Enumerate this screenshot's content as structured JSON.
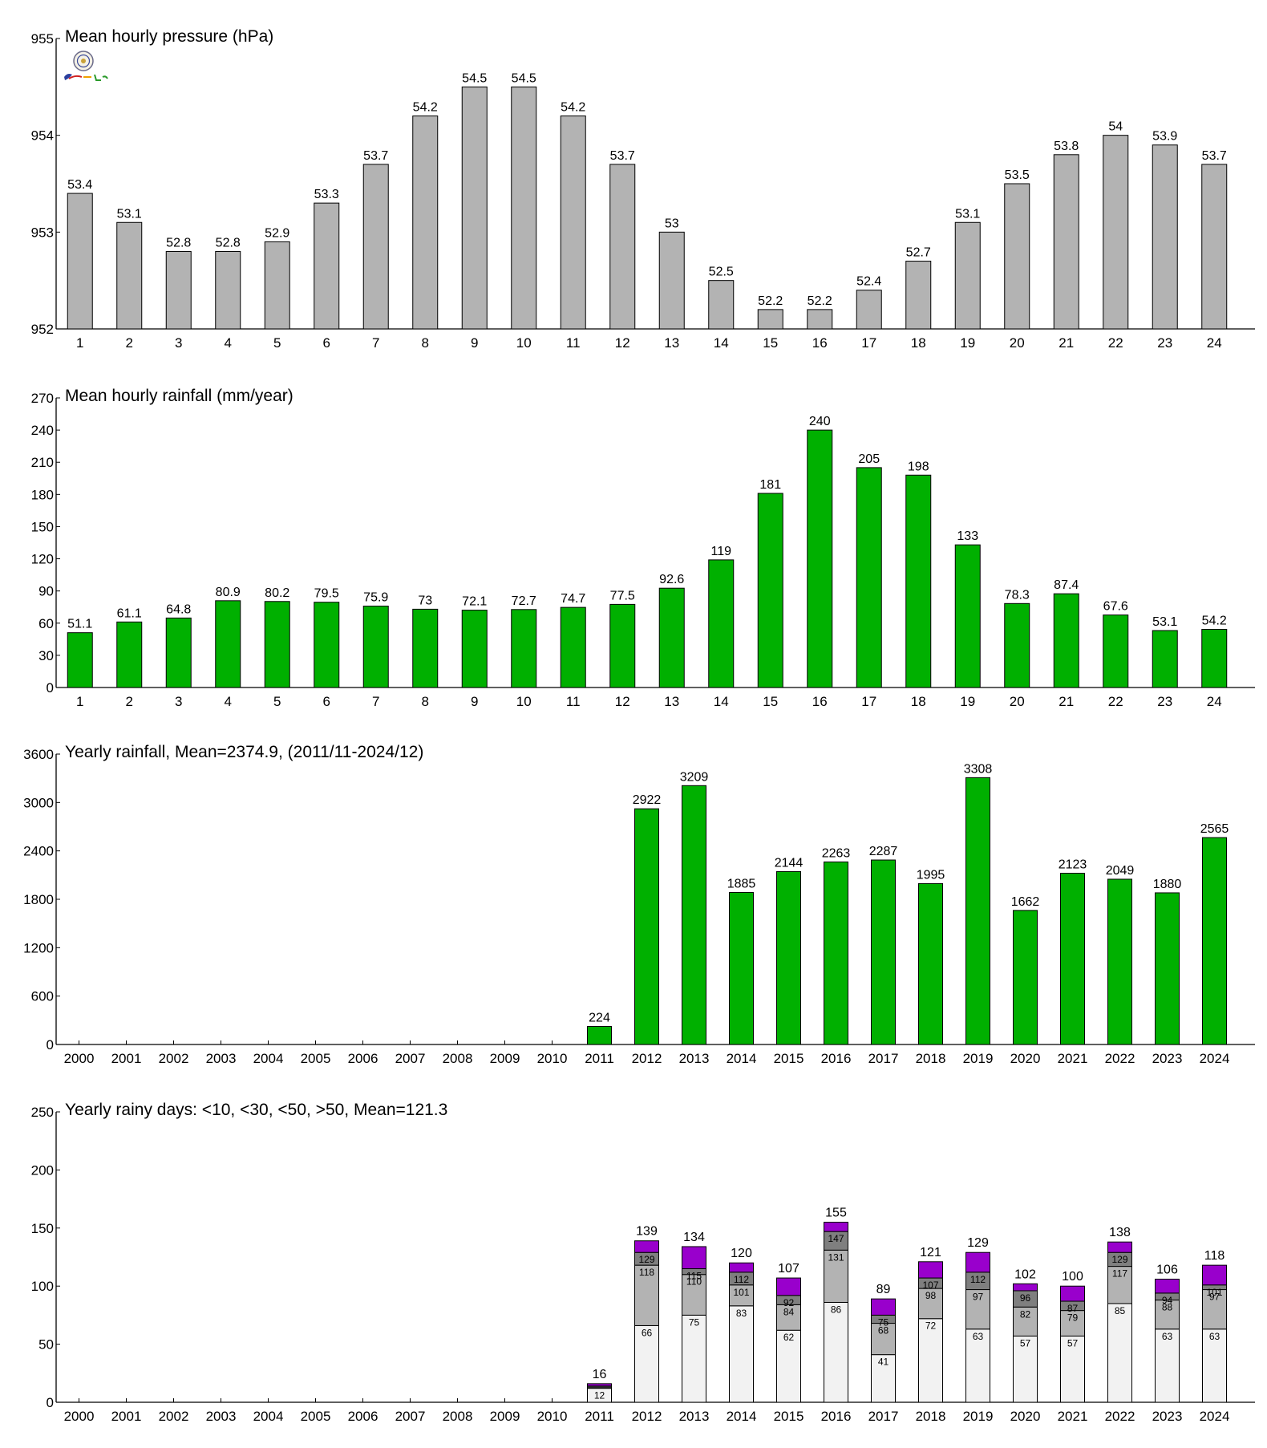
{
  "chart_data": [
    {
      "id": "pressure",
      "type": "bar",
      "title": "Mean hourly pressure (hPa)",
      "xlabel": "",
      "ylabel": "",
      "categories": [
        "1",
        "2",
        "3",
        "4",
        "5",
        "6",
        "7",
        "8",
        "9",
        "10",
        "11",
        "12",
        "13",
        "14",
        "15",
        "16",
        "17",
        "18",
        "19",
        "20",
        "21",
        "22",
        "23",
        "24"
      ],
      "values": [
        953.4,
        953.1,
        952.8,
        952.8,
        952.9,
        953.3,
        953.7,
        954.2,
        954.5,
        954.5,
        954.2,
        953.7,
        953.0,
        952.5,
        952.2,
        952.2,
        952.4,
        952.7,
        953.1,
        953.5,
        953.8,
        954.0,
        953.9,
        953.7
      ],
      "value_labels": [
        "53.4",
        "53.1",
        "52.8",
        "52.8",
        "52.9",
        "53.3",
        "53.7",
        "54.2",
        "54.5",
        "54.5",
        "54.2",
        "53.7",
        "53",
        "52.5",
        "52.2",
        "52.2",
        "52.4",
        "52.7",
        "53.1",
        "53.5",
        "53.8",
        "54",
        "53.9",
        "53.7"
      ],
      "ylim": [
        952,
        955
      ],
      "yticks": [
        952,
        953,
        954,
        955
      ],
      "color": "#b3b3b3",
      "grid": false
    },
    {
      "id": "hourly_rain",
      "type": "bar",
      "title": "Mean hourly rainfall (mm/year)",
      "xlabel": "",
      "ylabel": "",
      "categories": [
        "1",
        "2",
        "3",
        "4",
        "5",
        "6",
        "7",
        "8",
        "9",
        "10",
        "11",
        "12",
        "13",
        "14",
        "15",
        "16",
        "17",
        "18",
        "19",
        "20",
        "21",
        "22",
        "23",
        "24"
      ],
      "values": [
        51.1,
        61.1,
        64.8,
        80.9,
        80.2,
        79.5,
        75.9,
        73,
        72.1,
        72.7,
        74.7,
        77.5,
        92.6,
        119,
        181,
        240,
        205,
        198,
        133,
        78.3,
        87.4,
        67.6,
        53.1,
        54.2
      ],
      "value_labels": [
        "51.1",
        "61.1",
        "64.8",
        "80.9",
        "80.2",
        "79.5",
        "75.9",
        "73",
        "72.1",
        "72.7",
        "74.7",
        "77.5",
        "92.6",
        "119",
        "181",
        "240",
        "205",
        "198",
        "133",
        "78.3",
        "87.4",
        "67.6",
        "53.1",
        "54.2"
      ],
      "ylim": [
        0,
        270
      ],
      "yticks": [
        0,
        30,
        60,
        90,
        120,
        150,
        180,
        210,
        240,
        270
      ],
      "color": "#00b000",
      "grid": false
    },
    {
      "id": "yearly_rain",
      "type": "bar",
      "title": "Yearly rainfall, Mean=2374.9, (2011/11-2024/12)",
      "xlabel": "",
      "ylabel": "",
      "categories": [
        "2000",
        "2001",
        "2002",
        "2003",
        "2004",
        "2005",
        "2006",
        "2007",
        "2008",
        "2009",
        "2010",
        "2011",
        "2012",
        "2013",
        "2014",
        "2015",
        "2016",
        "2017",
        "2018",
        "2019",
        "2020",
        "2021",
        "2022",
        "2023",
        "2024"
      ],
      "values": [
        null,
        null,
        null,
        null,
        null,
        null,
        null,
        null,
        null,
        null,
        null,
        224,
        2922,
        3209,
        1885,
        2144,
        2263,
        2287,
        1995,
        3308,
        1662,
        2123,
        2049,
        1880,
        2565
      ],
      "value_labels": [
        "",
        "",
        "",
        "",
        "",
        "",
        "",
        "",
        "",
        "",
        "",
        "224",
        "2922",
        "3209",
        "1885",
        "2144",
        "2263",
        "2287",
        "1995",
        "3308",
        "1662",
        "2123",
        "2049",
        "1880",
        "2565"
      ],
      "ylim": [
        0,
        3600
      ],
      "yticks": [
        0,
        600,
        1200,
        1800,
        2400,
        3000,
        3600
      ],
      "color": "#00b000",
      "grid": false
    },
    {
      "id": "rainy_days",
      "type": "bar",
      "stacked": true,
      "title": "Yearly rainy days: <10, <30, <50, >50, Mean=121.3",
      "xlabel": "",
      "ylabel": "",
      "categories": [
        "2000",
        "2001",
        "2002",
        "2003",
        "2004",
        "2005",
        "2006",
        "2007",
        "2008",
        "2009",
        "2010",
        "2011",
        "2012",
        "2013",
        "2014",
        "2015",
        "2016",
        "2017",
        "2018",
        "2019",
        "2020",
        "2021",
        "2022",
        "2023",
        "2024"
      ],
      "series": [
        {
          "name": "<10",
          "color": "#f2f2f2",
          "values": [
            null,
            null,
            null,
            null,
            null,
            null,
            null,
            null,
            null,
            null,
            null,
            12,
            66,
            75,
            83,
            62,
            86,
            41,
            72,
            63,
            57,
            57,
            85,
            63,
            63
          ]
        },
        {
          "name": "<30",
          "color": "#b3b3b3",
          "values": [
            null,
            null,
            null,
            null,
            null,
            null,
            null,
            null,
            null,
            null,
            null,
            1,
            52,
            35,
            18,
            22,
            45,
            27,
            26,
            34,
            25,
            22,
            32,
            25,
            34
          ]
        },
        {
          "name": "<50",
          "color": "#7f7f7f",
          "values": [
            null,
            null,
            null,
            null,
            null,
            null,
            null,
            null,
            null,
            null,
            null,
            1,
            11,
            5,
            11,
            8,
            16,
            7,
            9,
            15,
            14,
            8,
            12,
            6,
            4
          ]
        },
        {
          "name": ">50",
          "color": "#9900cc",
          "values": [
            null,
            null,
            null,
            null,
            null,
            null,
            null,
            null,
            null,
            null,
            null,
            2,
            10,
            19,
            8,
            15,
            8,
            14,
            14,
            17,
            6,
            13,
            9,
            12,
            17
          ]
        }
      ],
      "totals": [
        null,
        null,
        null,
        null,
        null,
        null,
        null,
        null,
        null,
        null,
        null,
        16,
        139,
        134,
        120,
        107,
        155,
        89,
        121,
        129,
        102,
        100,
        138,
        106,
        118
      ],
      "inner_labels": [
        [
          "",
          "",
          ""
        ],
        [
          "",
          "",
          ""
        ],
        [
          "",
          "",
          ""
        ],
        [
          "",
          "",
          ""
        ],
        [
          "",
          "",
          ""
        ],
        [
          "",
          "",
          ""
        ],
        [
          "",
          "",
          ""
        ],
        [
          "",
          "",
          ""
        ],
        [
          "",
          "",
          ""
        ],
        [
          "",
          "",
          ""
        ],
        [
          "",
          "",
          ""
        ],
        [
          "12",
          "",
          ""
        ],
        [
          "66",
          "118",
          "129"
        ],
        [
          "75",
          "110",
          "115"
        ],
        [
          "83",
          "101",
          "112"
        ],
        [
          "62",
          "84",
          "92"
        ],
        [
          "86",
          "131",
          "147"
        ],
        [
          "41",
          "68",
          "75"
        ],
        [
          "72",
          "98",
          "107"
        ],
        [
          "63",
          "97",
          "112"
        ],
        [
          "57",
          "82",
          "96"
        ],
        [
          "57",
          "79",
          "87"
        ],
        [
          "85",
          "117",
          "129"
        ],
        [
          "63",
          "88",
          "94"
        ],
        [
          "63",
          "97",
          "101"
        ]
      ],
      "ylim": [
        0,
        250
      ],
      "yticks": [
        0,
        50,
        100,
        150,
        200,
        250
      ],
      "grid": false
    }
  ]
}
